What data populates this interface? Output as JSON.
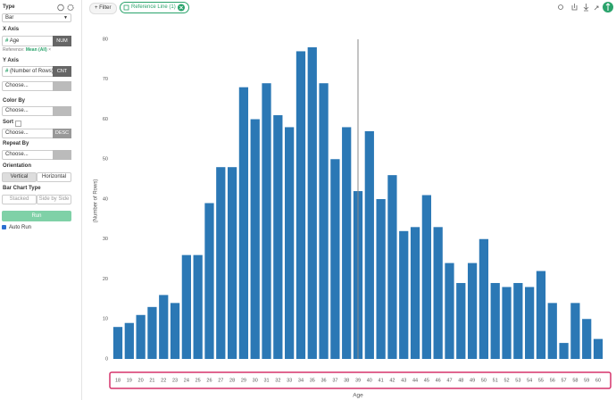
{
  "sidebar": {
    "type_label": "Type",
    "type_value": "Bar",
    "x_axis_label": "X Axis",
    "x_axis_icon": "#",
    "x_axis_field": "Age",
    "x_axis_kind": "NUM",
    "reference_prefix": "Reference:",
    "reference_value": "Mean (All)",
    "reference_remove": "×",
    "y_axis_label": "Y Axis",
    "y_axis_icon": "#",
    "y_axis_field": "(Number of Rows)",
    "y_axis_kind": "CNT",
    "y_axis_extra": "Choose...",
    "color_by_label": "Color By",
    "color_by_value": "Choose...",
    "sort_label": "Sort",
    "sort_value": "Choose...",
    "sort_order": "DESC",
    "repeat_by_label": "Repeat By",
    "repeat_by_value": "Choose...",
    "orientation_label": "Orientation",
    "orientation_options": [
      "Vertical",
      "Horizontal"
    ],
    "bar_type_label": "Bar Chart Type",
    "bar_type_options": [
      "Stacked",
      "Side by Side"
    ],
    "run_button": "Run",
    "auto_run": "Auto Run"
  },
  "toolbar": {
    "filter_button": "+ Filter",
    "reference_chip": "Reference Line (1)"
  },
  "chart_data": {
    "type": "bar",
    "x_label": "Age",
    "y_label": "(Number of Rows)",
    "color": "#2b78b5",
    "x": [
      18,
      19,
      20,
      21,
      22,
      23,
      24,
      25,
      26,
      27,
      28,
      29,
      30,
      31,
      32,
      33,
      34,
      35,
      36,
      37,
      38,
      39,
      40,
      41,
      42,
      43,
      44,
      45,
      46,
      47,
      48,
      49,
      50,
      51,
      52,
      53,
      54,
      55,
      56,
      57,
      58,
      59,
      60
    ],
    "values": [
      8,
      9,
      11,
      13,
      16,
      14,
      26,
      26,
      39,
      48,
      48,
      68,
      60,
      69,
      61,
      58,
      77,
      78,
      69,
      50,
      58,
      42,
      57,
      40,
      46,
      32,
      33,
      41,
      33,
      24,
      19,
      24,
      30,
      19,
      18,
      19,
      18,
      22,
      14,
      4,
      14,
      10,
      5
    ],
    "xlim": [
      17.5,
      60.5
    ],
    "ylim": [
      0,
      80
    ],
    "yticks": [
      0,
      10,
      20,
      30,
      40,
      50,
      60,
      70,
      80
    ],
    "grid": false,
    "reference_line": 39
  }
}
